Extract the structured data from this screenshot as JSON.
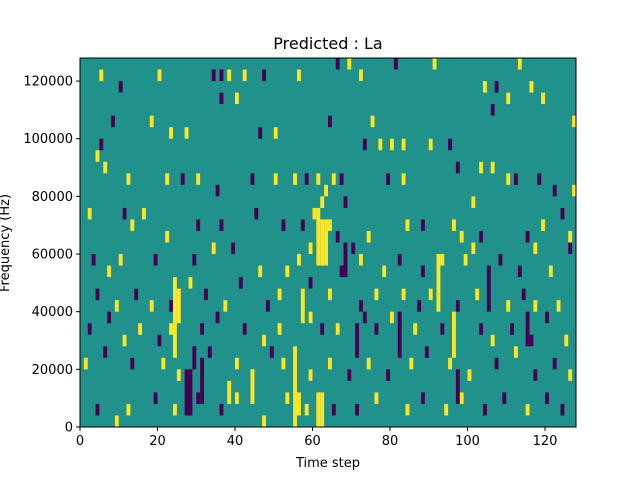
{
  "chart_data": {
    "type": "heatmap",
    "title": "Predicted : La",
    "xlabel": "Time step",
    "ylabel": "Frequency (Hz)",
    "xlim": [
      0,
      128
    ],
    "ylim": [
      0,
      128000
    ],
    "x_ticks": [
      0,
      20,
      40,
      60,
      80,
      100,
      120
    ],
    "x_tick_labels": [
      "0",
      "20",
      "40",
      "60",
      "80",
      "100",
      "120"
    ],
    "y_ticks": [
      0,
      20000,
      40000,
      60000,
      80000,
      100000,
      120000
    ],
    "y_tick_labels": [
      "0",
      "20000",
      "40000",
      "60000",
      "80000",
      "100000",
      "120000"
    ],
    "grid": false,
    "colormap": "viridis",
    "value_colors": {
      "-1": "#440154",
      "0": "#21918c",
      "1": "#fde725"
    },
    "background_value": 0,
    "bin_width_x": 1,
    "bin_height_y": 4000,
    "cells": [
      {
        "x": 5,
        "y": 120000,
        "v": 1
      },
      {
        "x": 10,
        "y": 116000,
        "v": -1
      },
      {
        "x": 20,
        "y": 120000,
        "v": 1
      },
      {
        "x": 34,
        "y": 120000,
        "v": -1
      },
      {
        "x": 36,
        "y": 120000,
        "v": -1
      },
      {
        "x": 38,
        "y": 120000,
        "v": 1
      },
      {
        "x": 42,
        "y": 120000,
        "v": 1
      },
      {
        "x": 47,
        "y": 120000,
        "v": -1
      },
      {
        "x": 56,
        "y": 120000,
        "v": 1
      },
      {
        "x": 66,
        "y": 124000,
        "v": -1
      },
      {
        "x": 69,
        "y": 124000,
        "v": 1
      },
      {
        "x": 72,
        "y": 120000,
        "v": 1
      },
      {
        "x": 81,
        "y": 124000,
        "v": -1
      },
      {
        "x": 91,
        "y": 124000,
        "v": 1
      },
      {
        "x": 104,
        "y": 116000,
        "v": 1
      },
      {
        "x": 107,
        "y": 116000,
        "v": -1
      },
      {
        "x": 110,
        "y": 112000,
        "v": 1
      },
      {
        "x": 113,
        "y": 124000,
        "v": 1
      },
      {
        "x": 116,
        "y": 116000,
        "v": 1
      },
      {
        "x": 119,
        "y": 112000,
        "v": 1
      },
      {
        "x": 8,
        "y": 104000,
        "v": -1
      },
      {
        "x": 18,
        "y": 104000,
        "v": 1
      },
      {
        "x": 23,
        "y": 100000,
        "v": 1
      },
      {
        "x": 27,
        "y": 100000,
        "v": 1
      },
      {
        "x": 36,
        "y": 112000,
        "v": -1
      },
      {
        "x": 40,
        "y": 112000,
        "v": 1
      },
      {
        "x": 46,
        "y": 100000,
        "v": -1
      },
      {
        "x": 50,
        "y": 100000,
        "v": 1
      },
      {
        "x": 64,
        "y": 104000,
        "v": -1
      },
      {
        "x": 75,
        "y": 104000,
        "v": 1
      },
      {
        "x": 73,
        "y": 96000,
        "v": -1
      },
      {
        "x": 77,
        "y": 96000,
        "v": 1
      },
      {
        "x": 80,
        "y": 96000,
        "v": 1
      },
      {
        "x": 83,
        "y": 96000,
        "v": 1
      },
      {
        "x": 90,
        "y": 96000,
        "v": 1
      },
      {
        "x": 95,
        "y": 96000,
        "v": -1
      },
      {
        "x": 106,
        "y": 108000,
        "v": -1
      },
      {
        "x": 127,
        "y": 104000,
        "v": 1
      },
      {
        "x": 4,
        "y": 92000,
        "v": 1
      },
      {
        "x": 5,
        "y": 96000,
        "v": -1
      },
      {
        "x": 6,
        "y": 88000,
        "v": 1
      },
      {
        "x": 12,
        "y": 84000,
        "v": 1
      },
      {
        "x": 22,
        "y": 84000,
        "v": 1
      },
      {
        "x": 26,
        "y": 84000,
        "v": -1
      },
      {
        "x": 30,
        "y": 84000,
        "v": 1
      },
      {
        "x": 35,
        "y": 80000,
        "v": -1
      },
      {
        "x": 44,
        "y": 84000,
        "v": -1
      },
      {
        "x": 50,
        "y": 84000,
        "v": 1
      },
      {
        "x": 55,
        "y": 84000,
        "v": 1
      },
      {
        "x": 58,
        "y": 84000,
        "v": -1
      },
      {
        "x": 61,
        "y": 84000,
        "v": 1
      },
      {
        "x": 63,
        "y": 80000,
        "v": 1
      },
      {
        "x": 65,
        "y": 84000,
        "v": 1
      },
      {
        "x": 67,
        "y": 84000,
        "v": -1
      },
      {
        "x": 68,
        "y": 76000,
        "v": -1
      },
      {
        "x": 79,
        "y": 84000,
        "v": -1
      },
      {
        "x": 83,
        "y": 84000,
        "v": 1
      },
      {
        "x": 97,
        "y": 88000,
        "v": -1
      },
      {
        "x": 101,
        "y": 76000,
        "v": 1
      },
      {
        "x": 103,
        "y": 88000,
        "v": 1
      },
      {
        "x": 106,
        "y": 88000,
        "v": 1
      },
      {
        "x": 110,
        "y": 84000,
        "v": 1
      },
      {
        "x": 112,
        "y": 84000,
        "v": -1
      },
      {
        "x": 118,
        "y": 84000,
        "v": -1
      },
      {
        "x": 122,
        "y": 80000,
        "v": -1
      },
      {
        "x": 127,
        "y": 80000,
        "v": 1
      },
      {
        "x": 2,
        "y": 72000,
        "v": 1
      },
      {
        "x": 11,
        "y": 72000,
        "v": -1
      },
      {
        "x": 13,
        "y": 68000,
        "v": 1
      },
      {
        "x": 16,
        "y": 72000,
        "v": 1
      },
      {
        "x": 22,
        "y": 64000,
        "v": 1
      },
      {
        "x": 30,
        "y": 68000,
        "v": -1
      },
      {
        "x": 36,
        "y": 68000,
        "v": -1
      },
      {
        "x": 45,
        "y": 72000,
        "v": -1
      },
      {
        "x": 52,
        "y": 68000,
        "v": -1
      },
      {
        "x": 57,
        "y": 68000,
        "v": -1
      },
      {
        "x": 60,
        "y": 72000,
        "v": 1
      },
      {
        "x": 62,
        "y": 76000,
        "v": 1
      },
      {
        "x": 64,
        "y": 68000,
        "v": 1
      },
      {
        "x": 66,
        "y": 64000,
        "v": -1
      },
      {
        "x": 70,
        "y": 60000,
        "v": -1
      },
      {
        "x": 74,
        "y": 64000,
        "v": 1
      },
      {
        "x": 84,
        "y": 68000,
        "v": 1
      },
      {
        "x": 88,
        "y": 68000,
        "v": -1
      },
      {
        "x": 96,
        "y": 68000,
        "v": 1
      },
      {
        "x": 98,
        "y": 64000,
        "v": 1
      },
      {
        "x": 101,
        "y": 60000,
        "v": 1
      },
      {
        "x": 103,
        "y": 64000,
        "v": -1
      },
      {
        "x": 115,
        "y": 64000,
        "v": -1
      },
      {
        "x": 119,
        "y": 68000,
        "v": 1
      },
      {
        "x": 124,
        "y": 72000,
        "v": -1
      },
      {
        "x": 126,
        "y": 64000,
        "v": 1
      },
      {
        "x": 3,
        "y": 56000,
        "v": -1
      },
      {
        "x": 7,
        "y": 52000,
        "v": 1
      },
      {
        "x": 10,
        "y": 56000,
        "v": 1
      },
      {
        "x": 19,
        "y": 56000,
        "v": -1
      },
      {
        "x": 29,
        "y": 56000,
        "v": -1
      },
      {
        "x": 34,
        "y": 60000,
        "v": 1
      },
      {
        "x": 39,
        "y": 60000,
        "v": -1
      },
      {
        "x": 46,
        "y": 52000,
        "v": 1
      },
      {
        "x": 53,
        "y": 52000,
        "v": 1
      },
      {
        "x": 56,
        "y": 56000,
        "v": 1
      },
      {
        "x": 59,
        "y": 60000,
        "v": 1
      },
      {
        "x": 67,
        "y": 52000,
        "v": -1
      },
      {
        "x": 72,
        "y": 56000,
        "v": 1
      },
      {
        "x": 78,
        "y": 52000,
        "v": 1
      },
      {
        "x": 82,
        "y": 56000,
        "v": -1
      },
      {
        "x": 88,
        "y": 52000,
        "v": -1
      },
      {
        "x": 93,
        "y": 56000,
        "v": 1
      },
      {
        "x": 99,
        "y": 56000,
        "v": 1
      },
      {
        "x": 108,
        "y": 56000,
        "v": -1
      },
      {
        "x": 113,
        "y": 52000,
        "v": -1
      },
      {
        "x": 117,
        "y": 60000,
        "v": 1
      },
      {
        "x": 121,
        "y": 52000,
        "v": 1
      },
      {
        "x": 126,
        "y": 60000,
        "v": -1
      },
      {
        "x": 4,
        "y": 44000,
        "v": -1
      },
      {
        "x": 9,
        "y": 40000,
        "v": 1
      },
      {
        "x": 14,
        "y": 44000,
        "v": -1
      },
      {
        "x": 18,
        "y": 40000,
        "v": 1
      },
      {
        "x": 23,
        "y": 40000,
        "v": -1
      },
      {
        "x": 28,
        "y": 48000,
        "v": 1
      },
      {
        "x": 32,
        "y": 44000,
        "v": -1
      },
      {
        "x": 37,
        "y": 40000,
        "v": 1
      },
      {
        "x": 41,
        "y": 48000,
        "v": -1
      },
      {
        "x": 48,
        "y": 40000,
        "v": -1
      },
      {
        "x": 51,
        "y": 44000,
        "v": 1
      },
      {
        "x": 59,
        "y": 48000,
        "v": -1
      },
      {
        "x": 64,
        "y": 44000,
        "v": 1
      },
      {
        "x": 72,
        "y": 40000,
        "v": -1
      },
      {
        "x": 76,
        "y": 44000,
        "v": 1
      },
      {
        "x": 83,
        "y": 44000,
        "v": 1
      },
      {
        "x": 87,
        "y": 40000,
        "v": -1
      },
      {
        "x": 90,
        "y": 44000,
        "v": 1
      },
      {
        "x": 97,
        "y": 40000,
        "v": -1
      },
      {
        "x": 102,
        "y": 44000,
        "v": 1
      },
      {
        "x": 110,
        "y": 40000,
        "v": 1
      },
      {
        "x": 114,
        "y": 44000,
        "v": -1
      },
      {
        "x": 117,
        "y": 40000,
        "v": 1
      },
      {
        "x": 123,
        "y": 40000,
        "v": 1
      },
      {
        "x": 2,
        "y": 32000,
        "v": -1
      },
      {
        "x": 7,
        "y": 36000,
        "v": -1
      },
      {
        "x": 11,
        "y": 28000,
        "v": 1
      },
      {
        "x": 15,
        "y": 32000,
        "v": 1
      },
      {
        "x": 20,
        "y": 28000,
        "v": -1
      },
      {
        "x": 23,
        "y": 32000,
        "v": 1
      },
      {
        "x": 31,
        "y": 32000,
        "v": -1
      },
      {
        "x": 35,
        "y": 36000,
        "v": -1
      },
      {
        "x": 42,
        "y": 32000,
        "v": -1
      },
      {
        "x": 47,
        "y": 28000,
        "v": 1
      },
      {
        "x": 51,
        "y": 32000,
        "v": 1
      },
      {
        "x": 59,
        "y": 36000,
        "v": 1
      },
      {
        "x": 62,
        "y": 32000,
        "v": -1
      },
      {
        "x": 66,
        "y": 32000,
        "v": 1
      },
      {
        "x": 73,
        "y": 36000,
        "v": -1
      },
      {
        "x": 76,
        "y": 32000,
        "v": -1
      },
      {
        "x": 80,
        "y": 36000,
        "v": 1
      },
      {
        "x": 86,
        "y": 32000,
        "v": 1
      },
      {
        "x": 93,
        "y": 32000,
        "v": -1
      },
      {
        "x": 96,
        "y": 36000,
        "v": 1
      },
      {
        "x": 103,
        "y": 32000,
        "v": -1
      },
      {
        "x": 106,
        "y": 28000,
        "v": 1
      },
      {
        "x": 111,
        "y": 32000,
        "v": -1
      },
      {
        "x": 116,
        "y": 28000,
        "v": -1
      },
      {
        "x": 120,
        "y": 36000,
        "v": -1
      },
      {
        "x": 125,
        "y": 28000,
        "v": 1
      },
      {
        "x": 1,
        "y": 20000,
        "v": 1
      },
      {
        "x": 6,
        "y": 24000,
        "v": -1
      },
      {
        "x": 13,
        "y": 20000,
        "v": -1
      },
      {
        "x": 21,
        "y": 20000,
        "v": 1
      },
      {
        "x": 25,
        "y": 16000,
        "v": 1
      },
      {
        "x": 33,
        "y": 24000,
        "v": -1
      },
      {
        "x": 40,
        "y": 20000,
        "v": 1
      },
      {
        "x": 44,
        "y": 16000,
        "v": 1
      },
      {
        "x": 49,
        "y": 24000,
        "v": -1
      },
      {
        "x": 52,
        "y": 20000,
        "v": 1
      },
      {
        "x": 59,
        "y": 16000,
        "v": 1
      },
      {
        "x": 64,
        "y": 20000,
        "v": 1
      },
      {
        "x": 69,
        "y": 16000,
        "v": -1
      },
      {
        "x": 74,
        "y": 20000,
        "v": 1
      },
      {
        "x": 79,
        "y": 16000,
        "v": -1
      },
      {
        "x": 85,
        "y": 20000,
        "v": 1
      },
      {
        "x": 89,
        "y": 24000,
        "v": -1
      },
      {
        "x": 95,
        "y": 20000,
        "v": 1
      },
      {
        "x": 100,
        "y": 16000,
        "v": 1
      },
      {
        "x": 107,
        "y": 20000,
        "v": -1
      },
      {
        "x": 112,
        "y": 24000,
        "v": 1
      },
      {
        "x": 117,
        "y": 16000,
        "v": -1
      },
      {
        "x": 122,
        "y": 20000,
        "v": -1
      },
      {
        "x": 126,
        "y": 16000,
        "v": 1
      },
      {
        "x": 4,
        "y": 4000,
        "v": -1
      },
      {
        "x": 9,
        "y": 0,
        "v": 1
      },
      {
        "x": 12,
        "y": 4000,
        "v": 1
      },
      {
        "x": 19,
        "y": 8000,
        "v": -1
      },
      {
        "x": 24,
        "y": 4000,
        "v": 1
      },
      {
        "x": 30,
        "y": 8000,
        "v": -1
      },
      {
        "x": 36,
        "y": 4000,
        "v": -1
      },
      {
        "x": 40,
        "y": 8000,
        "v": 1
      },
      {
        "x": 47,
        "y": 0,
        "v": 1
      },
      {
        "x": 53,
        "y": 8000,
        "v": 1
      },
      {
        "x": 58,
        "y": 4000,
        "v": 1
      },
      {
        "x": 65,
        "y": 4000,
        "v": -1
      },
      {
        "x": 71,
        "y": 4000,
        "v": -1
      },
      {
        "x": 76,
        "y": 8000,
        "v": 1
      },
      {
        "x": 84,
        "y": 4000,
        "v": 1
      },
      {
        "x": 88,
        "y": 8000,
        "v": -1
      },
      {
        "x": 94,
        "y": 4000,
        "v": 1
      },
      {
        "x": 98,
        "y": 8000,
        "v": 1
      },
      {
        "x": 104,
        "y": 4000,
        "v": -1
      },
      {
        "x": 109,
        "y": 8000,
        "v": -1
      },
      {
        "x": 115,
        "y": 4000,
        "v": 1
      },
      {
        "x": 120,
        "y": 8000,
        "v": -1
      },
      {
        "x": 124,
        "y": 4000,
        "v": -1
      }
    ],
    "runs": [
      {
        "x": 24,
        "y_from": 24000,
        "y_to": 52000,
        "v": 1
      },
      {
        "x": 25,
        "y_from": 36000,
        "y_to": 48000,
        "v": 1
      },
      {
        "x": 27,
        "y_from": 4000,
        "y_to": 20000,
        "v": -1
      },
      {
        "x": 28,
        "y_from": 4000,
        "y_to": 20000,
        "v": -1
      },
      {
        "x": 29,
        "y_from": 20000,
        "y_to": 28000,
        "v": -1
      },
      {
        "x": 31,
        "y_from": 8000,
        "y_to": 24000,
        "v": -1
      },
      {
        "x": 38,
        "y_from": 8000,
        "y_to": 16000,
        "v": 1
      },
      {
        "x": 44,
        "y_from": 8000,
        "y_to": 20000,
        "v": 1
      },
      {
        "x": 55,
        "y_from": 0,
        "y_to": 28000,
        "v": 1
      },
      {
        "x": 56,
        "y_from": 4000,
        "y_to": 12000,
        "v": 1
      },
      {
        "x": 57,
        "y_from": 36000,
        "y_to": 48000,
        "v": 1
      },
      {
        "x": 61,
        "y_from": 56000,
        "y_to": 76000,
        "v": 1
      },
      {
        "x": 62,
        "y_from": 56000,
        "y_to": 72000,
        "v": 1
      },
      {
        "x": 63,
        "y_from": 56000,
        "y_to": 72000,
        "v": 1
      },
      {
        "x": 61,
        "y_from": 0,
        "y_to": 12000,
        "v": 1
      },
      {
        "x": 62,
        "y_from": 0,
        "y_to": 12000,
        "v": 1
      },
      {
        "x": 68,
        "y_from": 52000,
        "y_to": 64000,
        "v": -1
      },
      {
        "x": 71,
        "y_from": 24000,
        "y_to": 36000,
        "v": -1
      },
      {
        "x": 82,
        "y_from": 24000,
        "y_to": 40000,
        "v": -1
      },
      {
        "x": 92,
        "y_from": 40000,
        "y_to": 60000,
        "v": 1
      },
      {
        "x": 96,
        "y_from": 24000,
        "y_to": 36000,
        "v": 1
      },
      {
        "x": 97,
        "y_from": 8000,
        "y_to": 20000,
        "v": -1
      },
      {
        "x": 105,
        "y_from": 40000,
        "y_to": 56000,
        "v": -1
      },
      {
        "x": 115,
        "y_from": 28000,
        "y_to": 40000,
        "v": -1
      }
    ]
  }
}
